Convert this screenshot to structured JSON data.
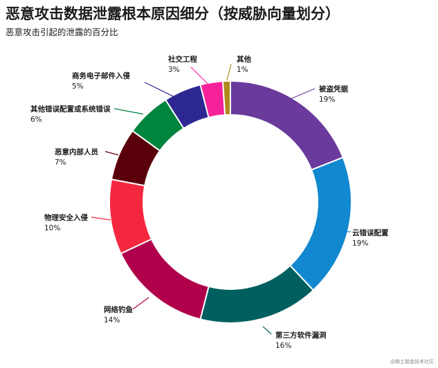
{
  "page": {
    "title": "恶意攻击数据泄露根本原因细分（按威胁向量划分）",
    "subtitle": "恶意攻击引起的泄露的百分比",
    "footer": "@稀土掘金技术社区"
  },
  "chart_data": {
    "type": "pie",
    "title": "恶意攻击数据泄露根本原因细分（按威胁向量划分）",
    "subtitle": "恶意攻击引起的泄露的百分比",
    "donut": true,
    "unit": "%",
    "slices": [
      {
        "label": "被盗凭据",
        "value": 19,
        "pct": "19%",
        "color": "#6A3A9C"
      },
      {
        "label": "云错误配置",
        "value": 19,
        "pct": "19%",
        "color": "#1188D0"
      },
      {
        "label": "第三方软件漏洞",
        "value": 16,
        "pct": "16%",
        "color": "#00605F"
      },
      {
        "label": "网络钓鱼",
        "value": 14,
        "pct": "14%",
        "color": "#B0004C"
      },
      {
        "label": "物理安全入侵",
        "value": 10,
        "pct": "10%",
        "color": "#F5273F"
      },
      {
        "label": "恶意内部人员",
        "value": 7,
        "pct": "7%",
        "color": "#5A000C"
      },
      {
        "label": "其他错误配置或系统错误",
        "value": 6,
        "pct": "6%",
        "color": "#00853E"
      },
      {
        "label": "商务电子邮件入侵",
        "value": 5,
        "pct": "5%",
        "color": "#2D2891"
      },
      {
        "label": "社交工程",
        "value": 3,
        "pct": "3%",
        "color": "#F5219B"
      },
      {
        "label": "其他",
        "value": 1,
        "pct": "1%",
        "color": "#B08A1E"
      }
    ]
  }
}
